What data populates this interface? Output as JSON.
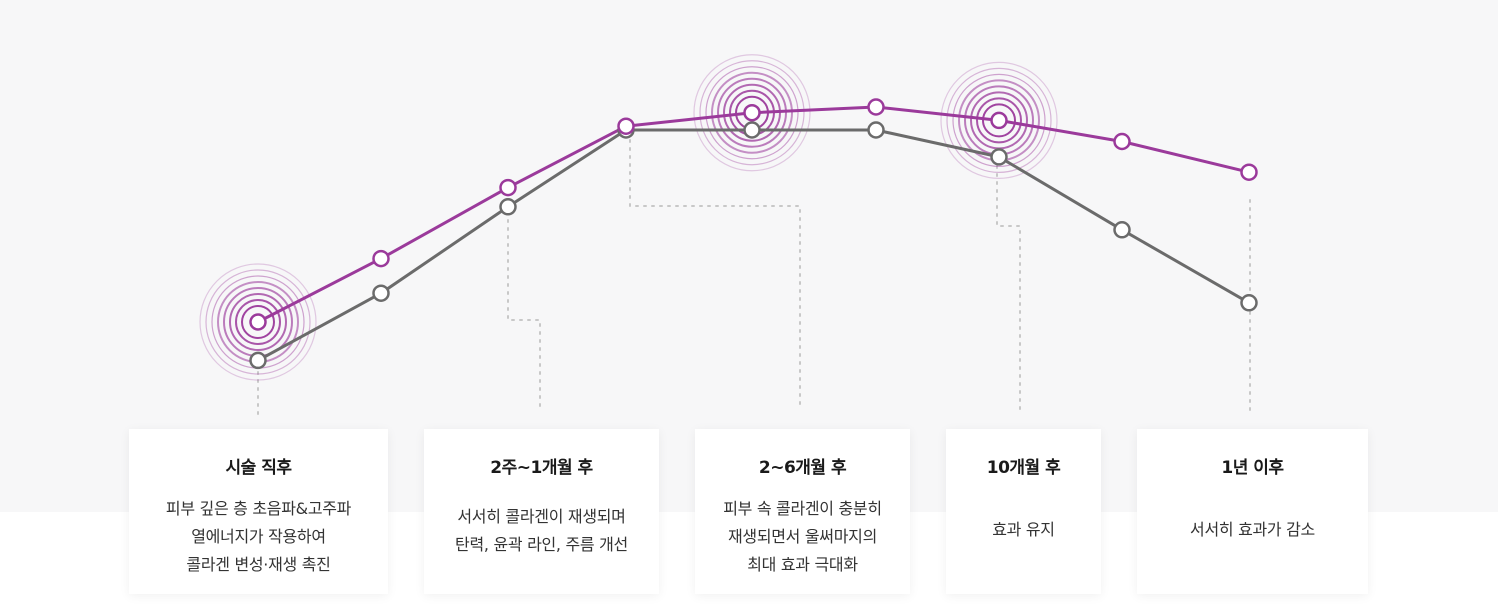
{
  "chart_data": {
    "type": "line",
    "categories": [
      "0",
      "1",
      "2",
      "3",
      "4",
      "5",
      "6",
      "7",
      "8"
    ],
    "series": [
      {
        "color": "#9b3a9b",
        "values": [
          0.0,
          0.33,
          0.7,
          1.02,
          1.09,
          1.12,
          1.05,
          0.94,
          0.78
        ]
      },
      {
        "color": "#6b6b6b",
        "values": [
          -0.2,
          0.15,
          0.6,
          1.0,
          1.0,
          1.0,
          0.86,
          0.48,
          0.1
        ]
      }
    ],
    "highlights": [
      0,
      4,
      6
    ],
    "phases": [
      {
        "title": "시술 직후",
        "text": "피부 깊은 층 초음파&고주파\n열에너지가 작용하여\n콜라겐 변성·재생 촉진"
      },
      {
        "title": "2주~1개월 후",
        "text": "서서히 콜라겐이 재생되며\n탄력, 윤곽 라인, 주름 개선"
      },
      {
        "title": "2~6개월 후",
        "text": "피부 속 콜라겐이 충분히\n재생되면서 울써마지의\n최대 효과 극대화"
      },
      {
        "title": "10개월 후",
        "text": "효과 유지"
      },
      {
        "title": "1년 이후",
        "text": "서서히 효과가 감소"
      }
    ],
    "grid": false,
    "legend": "none"
  }
}
